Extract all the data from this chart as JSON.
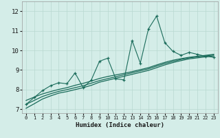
{
  "xlabel": "Humidex (Indice chaleur)",
  "bg_color": "#d4ede8",
  "grid_color": "#b8d8d0",
  "line_color": "#1a6b5a",
  "xlim": [
    -0.5,
    23.5
  ],
  "ylim": [
    6.8,
    12.5
  ],
  "yticks": [
    7,
    8,
    9,
    10,
    11,
    12
  ],
  "xticks": [
    0,
    1,
    2,
    3,
    4,
    5,
    6,
    7,
    8,
    9,
    10,
    11,
    12,
    13,
    14,
    15,
    16,
    17,
    18,
    19,
    20,
    21,
    22,
    23
  ],
  "x_data": [
    0,
    1,
    2,
    3,
    4,
    5,
    6,
    7,
    8,
    9,
    10,
    11,
    12,
    13,
    14,
    15,
    16,
    17,
    18,
    19,
    20,
    21,
    22,
    23
  ],
  "y_scatter": [
    7.25,
    7.6,
    7.95,
    8.2,
    8.35,
    8.3,
    8.85,
    8.1,
    8.5,
    9.45,
    9.6,
    8.55,
    8.5,
    10.5,
    9.35,
    11.1,
    11.75,
    10.4,
    9.95,
    9.75,
    9.9,
    9.8,
    9.7,
    9.65
  ],
  "y_line1": [
    7.05,
    7.28,
    7.52,
    7.68,
    7.82,
    7.9,
    8.0,
    8.1,
    8.22,
    8.38,
    8.48,
    8.58,
    8.68,
    8.78,
    8.88,
    8.98,
    9.12,
    9.26,
    9.38,
    9.48,
    9.57,
    9.62,
    9.67,
    9.72
  ],
  "y_line2": [
    7.25,
    7.45,
    7.65,
    7.79,
    7.91,
    8.0,
    8.1,
    8.2,
    8.33,
    8.46,
    8.56,
    8.66,
    8.76,
    8.86,
    8.96,
    9.06,
    9.2,
    9.33,
    9.44,
    9.54,
    9.62,
    9.67,
    9.72,
    9.77
  ],
  "y_line3": [
    7.45,
    7.62,
    7.78,
    7.9,
    8.01,
    8.1,
    8.22,
    8.32,
    8.44,
    8.57,
    8.67,
    8.75,
    8.83,
    8.92,
    9.02,
    9.12,
    9.26,
    9.39,
    9.5,
    9.58,
    9.65,
    9.7,
    9.75,
    9.8
  ]
}
